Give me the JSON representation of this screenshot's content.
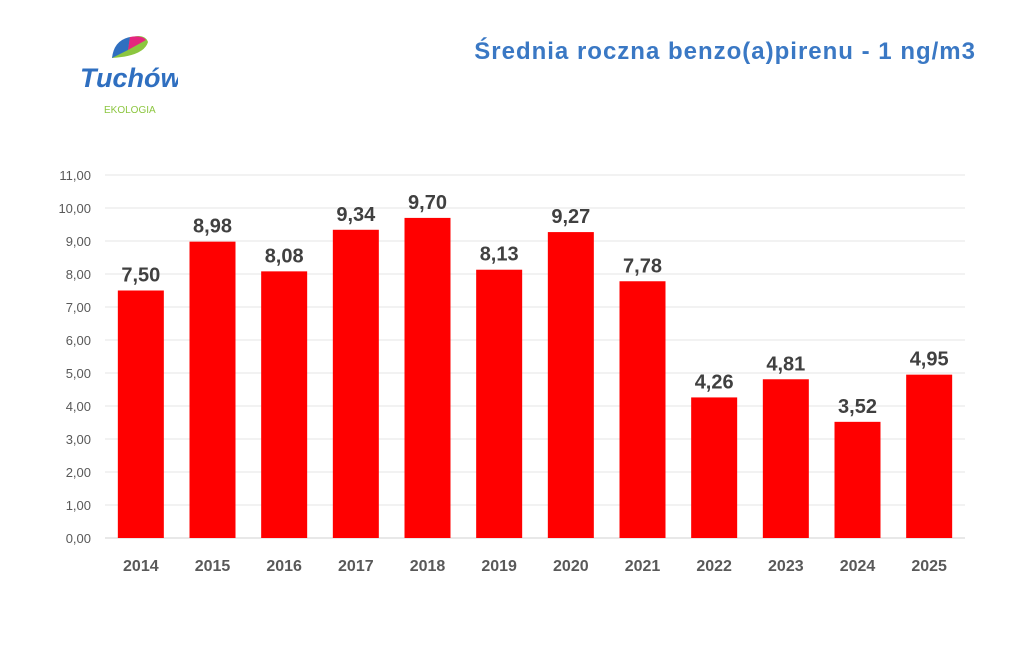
{
  "logo": {
    "name": "Tuchów",
    "subtitle": "EKOLOGIA"
  },
  "chart_data": {
    "type": "bar",
    "title": "Średnia roczna benzo(a)pirenu - 1 ng/m3",
    "categories": [
      "2014",
      "2015",
      "2016",
      "2017",
      "2018",
      "2019",
      "2020",
      "2021",
      "2022",
      "2023",
      "2024",
      "2025"
    ],
    "values": [
      7.5,
      8.98,
      8.08,
      9.34,
      9.7,
      8.13,
      9.27,
      7.78,
      4.26,
      4.81,
      3.52,
      4.95
    ],
    "labels": [
      "7,50",
      "8,98",
      "8,08",
      "9,34",
      "9,70",
      "8,13",
      "9,27",
      "7,78",
      "4,26",
      "4,81",
      "3,52",
      "4,95"
    ],
    "yticks": [
      "0,00",
      "1,00",
      "2,00",
      "3,00",
      "4,00",
      "5,00",
      "6,00",
      "7,00",
      "8,00",
      "9,00",
      "10,00",
      "11,00"
    ],
    "ylim": [
      0,
      11
    ],
    "xlabel": "",
    "ylabel": "",
    "grid": true,
    "bar_color": "#ff0000"
  }
}
